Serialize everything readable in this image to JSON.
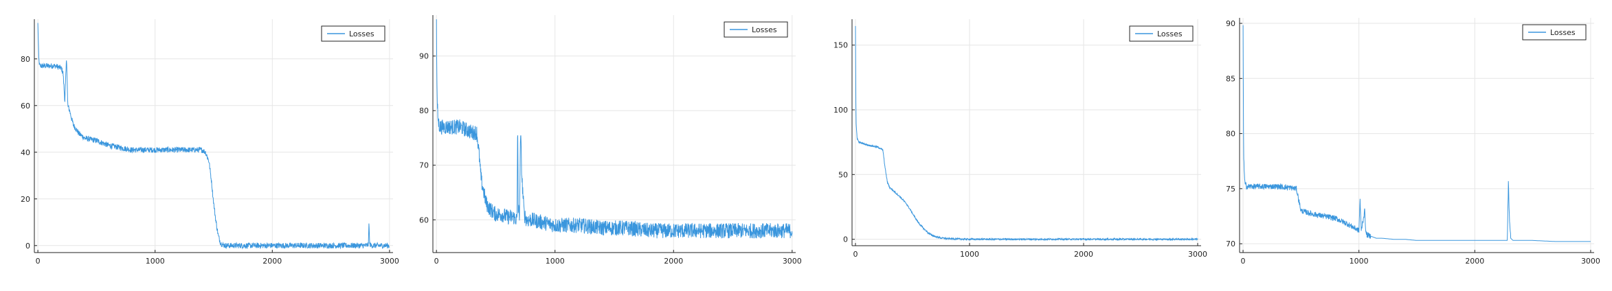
{
  "chart_data": [
    {
      "type": "line",
      "title": "",
      "xlabel": "",
      "ylabel": "",
      "xlim": [
        -30,
        3030
      ],
      "ylim": [
        -3,
        97
      ],
      "xticks": [
        0,
        1000,
        2000,
        3000
      ],
      "yticks": [
        0,
        20,
        40,
        60,
        80
      ],
      "grid": true,
      "legend": "top-right",
      "color": "#3a96dd",
      "series": [
        {
          "name": "Losses",
          "x": [
            0,
            8,
            15,
            40,
            100,
            150,
            200,
            215,
            230,
            240,
            245,
            255,
            270,
            300,
            350,
            400,
            500,
            600,
            700,
            800,
            900,
            1000,
            1100,
            1200,
            1300,
            1400,
            1430,
            1460,
            1480,
            1500,
            1520,
            1540,
            1560,
            1580,
            1600,
            1650,
            1800,
            2000,
            2200,
            2400,
            2600,
            2800,
            2820,
            2825,
            2830,
            2840,
            2860,
            2900,
            3000
          ],
          "y": [
            95,
            80,
            77,
            77,
            77,
            77,
            76,
            74,
            62,
            75,
            81,
            60,
            58,
            52,
            48,
            46,
            45,
            43,
            42,
            41,
            41,
            41,
            41,
            41,
            41,
            41,
            40,
            36,
            28,
            18,
            10,
            4,
            1,
            0.3,
            0,
            0,
            0,
            0,
            0,
            0,
            0,
            0,
            0.5,
            11,
            1,
            0,
            0,
            0,
            0
          ]
        }
      ]
    },
    {
      "type": "line",
      "title": "",
      "xlabel": "",
      "ylabel": "",
      "xlim": [
        -30,
        3030
      ],
      "ylim": [
        54,
        97.5
      ],
      "xticks": [
        0,
        1000,
        2000,
        3000
      ],
      "yticks": [
        60,
        70,
        80,
        90
      ],
      "grid": true,
      "legend": "top-right",
      "color": "#3a96dd",
      "series": [
        {
          "name": "Losses",
          "x": [
            0,
            5,
            15,
            30,
            100,
            200,
            300,
            340,
            360,
            370,
            380,
            400,
            420,
            450,
            500,
            550,
            600,
            650,
            680,
            685,
            690,
            700,
            710,
            720,
            740,
            760,
            800,
            900,
            1000,
            1200,
            1400,
            1600,
            1800,
            2000,
            2200,
            2400,
            2600,
            2800,
            2950,
            3000
          ],
          "y": [
            96,
            82,
            78,
            77,
            77,
            77,
            76,
            76,
            72,
            69,
            67,
            65,
            63,
            62,
            61,
            61,
            60.5,
            60.5,
            60,
            79,
            62,
            61,
            76,
            68,
            61,
            60,
            60,
            59.5,
            59,
            59,
            58.5,
            58.5,
            58,
            58,
            58,
            58,
            58,
            58,
            58,
            58
          ]
        }
      ]
    },
    {
      "type": "line",
      "title": "",
      "xlabel": "",
      "ylabel": "",
      "xlim": [
        -30,
        3030
      ],
      "ylim": [
        -5,
        170
      ],
      "xticks": [
        0,
        1000,
        2000,
        3000
      ],
      "yticks": [
        0,
        50,
        100,
        150
      ],
      "grid": true,
      "legend": "top-right",
      "color": "#3a96dd",
      "series": [
        {
          "name": "Losses",
          "x": [
            0,
            5,
            15,
            30,
            100,
            200,
            240,
            260,
            280,
            300,
            350,
            400,
            450,
            500,
            550,
            600,
            650,
            700,
            750,
            800,
            900,
            1000,
            1500,
            2000,
            2500,
            3000
          ],
          "y": [
            165,
            90,
            78,
            75,
            73,
            71,
            69,
            55,
            44,
            40,
            36,
            32,
            27,
            20,
            13,
            8,
            4,
            2,
            1,
            0.5,
            0.2,
            0,
            0,
            0,
            0,
            0
          ]
        }
      ]
    },
    {
      "type": "line",
      "title": "",
      "xlabel": "",
      "ylabel": "",
      "xlim": [
        -30,
        3030
      ],
      "ylim": [
        69.2,
        90.5
      ],
      "xticks": [
        0,
        1000,
        2000,
        3000
      ],
      "yticks": [
        70,
        75,
        80,
        85,
        90
      ],
      "grid": true,
      "legend": "top-right",
      "color": "#3a96dd",
      "series": [
        {
          "name": "Losses",
          "x": [
            0,
            5,
            15,
            30,
            100,
            200,
            300,
            400,
            460,
            480,
            500,
            600,
            700,
            800,
            900,
            1000,
            1010,
            1020,
            1050,
            1060,
            1070,
            1100,
            1150,
            1200,
            1300,
            1400,
            1500,
            1700,
            1900,
            2100,
            2280,
            2290,
            2300,
            2310,
            2330,
            2500,
            2700,
            2900,
            3000
          ],
          "y": [
            89.8,
            78,
            75.5,
            75.2,
            75.2,
            75.2,
            75.2,
            75.1,
            75,
            74,
            73,
            72.7,
            72.5,
            72.3,
            71.8,
            71.2,
            74,
            71.2,
            73,
            71,
            70.8,
            70.7,
            70.5,
            70.5,
            70.4,
            70.4,
            70.3,
            70.3,
            70.3,
            70.3,
            70.3,
            75.5,
            72,
            70.5,
            70.3,
            70.3,
            70.2,
            70.2,
            70.2
          ]
        }
      ]
    }
  ]
}
